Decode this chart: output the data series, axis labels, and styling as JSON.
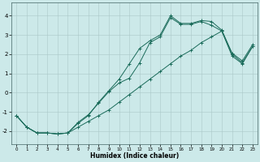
{
  "xlabel": "Humidex (Indice chaleur)",
  "bg_color": "#cce9e9",
  "grid_color": "#aac8c8",
  "line_color": "#1a6b5a",
  "xlim": [
    -0.5,
    23.5
  ],
  "ylim": [
    -2.7,
    4.7
  ],
  "xticks": [
    0,
    1,
    2,
    3,
    4,
    5,
    6,
    7,
    8,
    9,
    10,
    11,
    12,
    13,
    14,
    15,
    16,
    17,
    18,
    19,
    20,
    21,
    22,
    23
  ],
  "yticks": [
    -2,
    -1,
    0,
    1,
    2,
    3,
    4
  ],
  "series": [
    {
      "x": [
        0,
        1,
        2,
        3,
        4,
        5,
        6,
        7,
        8,
        9,
        10,
        11,
        12,
        13,
        14,
        15,
        16,
        17,
        18,
        19,
        20,
        21,
        22,
        23
      ],
      "y": [
        -1.2,
        -1.8,
        -2.1,
        -2.1,
        -2.15,
        -2.1,
        -1.6,
        -1.2,
        -0.5,
        0.1,
        0.7,
        1.5,
        2.3,
        2.7,
        3.0,
        4.0,
        3.6,
        3.6,
        3.75,
        3.7,
        3.25,
        2.05,
        1.65,
        2.5
      ]
    },
    {
      "x": [
        0,
        1,
        2,
        3,
        4,
        5,
        6,
        7,
        8,
        9,
        10,
        11,
        12,
        13,
        14,
        15,
        16,
        17,
        18,
        19,
        20,
        21,
        22,
        23
      ],
      "y": [
        -1.2,
        -1.8,
        -2.1,
        -2.1,
        -2.15,
        -2.1,
        -1.55,
        -1.15,
        -0.55,
        0.05,
        0.5,
        0.75,
        1.55,
        2.6,
        2.9,
        3.9,
        3.55,
        3.55,
        3.7,
        3.5,
        3.2,
        2.0,
        1.55,
        2.4
      ]
    },
    {
      "x": [
        0,
        1,
        2,
        3,
        4,
        5,
        6,
        7,
        8,
        9,
        10,
        11,
        12,
        13,
        14,
        15,
        16,
        17,
        18,
        19,
        20,
        21,
        22,
        23
      ],
      "y": [
        -1.2,
        -1.8,
        -2.1,
        -2.1,
        -2.15,
        -2.1,
        -1.8,
        -1.5,
        -1.2,
        -0.9,
        -0.5,
        -0.1,
        0.3,
        0.7,
        1.1,
        1.5,
        1.9,
        2.2,
        2.6,
        2.9,
        3.2,
        1.9,
        1.5,
        2.4
      ]
    }
  ]
}
